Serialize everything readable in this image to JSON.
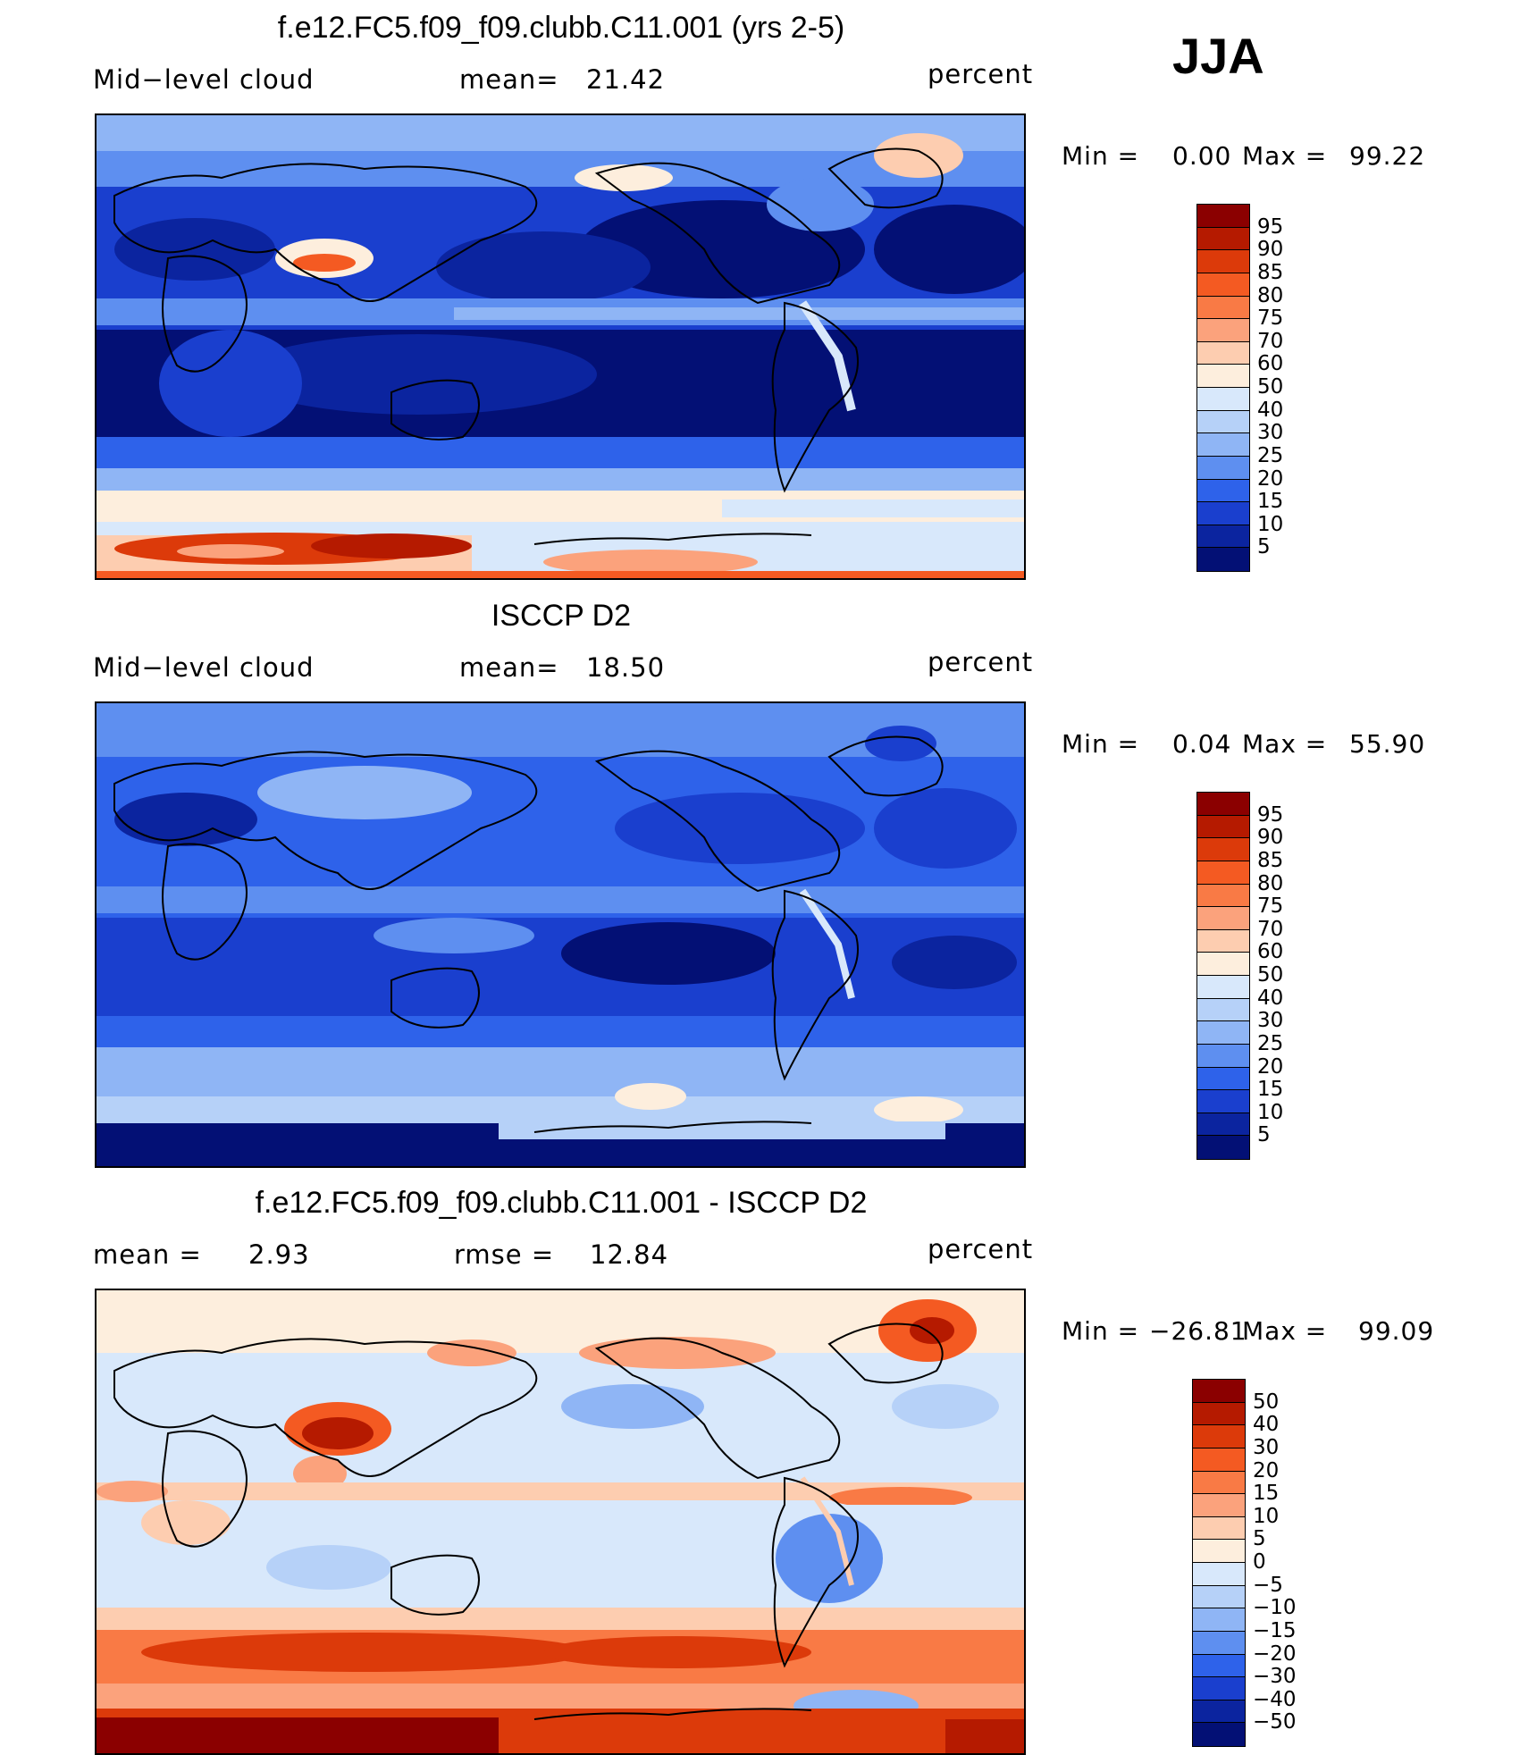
{
  "season": "JJA",
  "panels": [
    {
      "title": "f.e12.FC5.f09_f09.clubb.C11.001 (yrs 2-5)",
      "left_label": "Mid−level  cloud",
      "mid_label": "mean=",
      "mid_value": "21.42",
      "units": "percent",
      "min_label": "Min  =",
      "min_value": "0.00",
      "max_label": "Max  =",
      "max_value": "99.22",
      "levels": [
        "95",
        "90",
        "85",
        "80",
        "75",
        "70",
        "60",
        "50",
        "40",
        "30",
        "25",
        "20",
        "15",
        "10",
        "5"
      ],
      "colors": [
        "#8b0000",
        "#b51a00",
        "#dc3a0a",
        "#f45a22",
        "#f97a45",
        "#fba27c",
        "#fdcdb0",
        "#fdeedd",
        "#d8e8fb",
        "#b6d1f8",
        "#8fb5f5",
        "#5e8ff0",
        "#2e62ea",
        "#1a3fce",
        "#0b249f",
        "#031075"
      ]
    },
    {
      "title": "ISCCP D2",
      "left_label": "Mid−level  cloud",
      "mid_label": "mean=",
      "mid_value": "18.50",
      "units": "percent",
      "min_label": "Min  =",
      "min_value": "0.04",
      "max_label": "Max  =",
      "max_value": "55.90",
      "levels": [
        "95",
        "90",
        "85",
        "80",
        "75",
        "70",
        "60",
        "50",
        "40",
        "30",
        "25",
        "20",
        "15",
        "10",
        "5"
      ],
      "colors": [
        "#8b0000",
        "#b51a00",
        "#dc3a0a",
        "#f45a22",
        "#f97a45",
        "#fba27c",
        "#fdcdb0",
        "#fdeedd",
        "#d8e8fb",
        "#b6d1f8",
        "#8fb5f5",
        "#5e8ff0",
        "#2e62ea",
        "#1a3fce",
        "#0b249f",
        "#031075"
      ]
    },
    {
      "title": "f.e12.FC5.f09_f09.clubb.C11.001 - ISCCP D2",
      "left_label": "mean  =",
      "left_value": "2.93",
      "mid_label": "rmse  =",
      "mid_value": "12.84",
      "units": "percent",
      "min_label": "Min  =",
      "min_value": "−26.81",
      "max_label": "Max  =",
      "max_value": "99.09",
      "levels": [
        "50",
        "40",
        "30",
        "20",
        "15",
        "10",
        "5",
        "0",
        "−5",
        "−10",
        "−15",
        "−20",
        "−30",
        "−40",
        "−50"
      ],
      "colors": [
        "#8b0000",
        "#b51a00",
        "#dc3a0a",
        "#f45a22",
        "#f97a45",
        "#fba27c",
        "#fdcdb0",
        "#fdeedd",
        "#d8e8fb",
        "#b6d1f8",
        "#8fb5f5",
        "#5e8ff0",
        "#2e62ea",
        "#1a3fce",
        "#0b249f",
        "#031075"
      ]
    }
  ]
}
